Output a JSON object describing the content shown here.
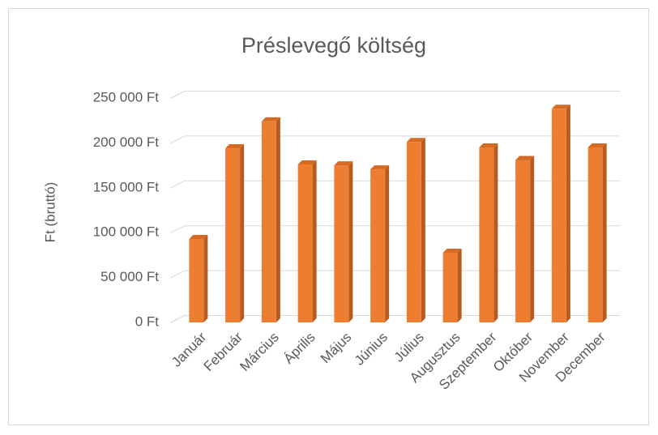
{
  "chart_data": {
    "type": "bar",
    "title": "Préslevegő költség",
    "ylabel": "Ft (bruttó)",
    "categories": [
      "Január",
      "Február",
      "Március",
      "Április",
      "Május",
      "Június",
      "Július",
      "Augusztus",
      "Szeptember",
      "Október",
      "November",
      "December"
    ],
    "values": [
      93000,
      194000,
      224000,
      176000,
      175000,
      170500,
      201000,
      77600,
      195000,
      181000,
      238000,
      195000
    ],
    "color": "#ed7d31",
    "ylim": [
      0,
      250000
    ],
    "yticks": [
      {
        "value": 0,
        "label": "0 Ft"
      },
      {
        "value": 50000,
        "label": "50 000 Ft"
      },
      {
        "value": 100000,
        "label": "100 000 Ft"
      },
      {
        "value": 150000,
        "label": "150 000 Ft"
      },
      {
        "value": 200000,
        "label": "200 000 Ft"
      },
      {
        "value": 250000,
        "label": "250 000 Ft"
      }
    ],
    "grid": true
  }
}
